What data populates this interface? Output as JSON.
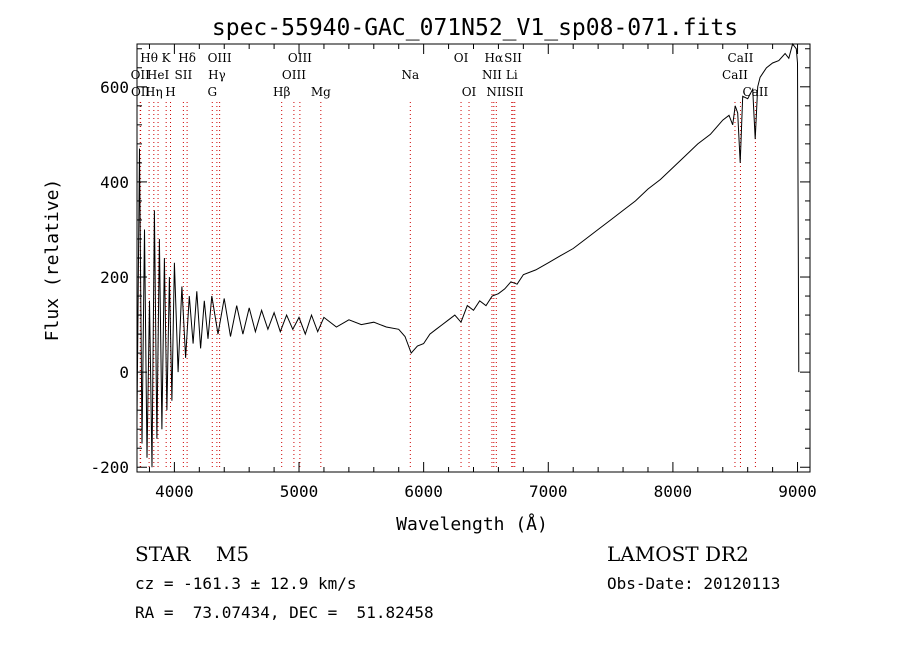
{
  "chart_data": {
    "type": "line",
    "title": "spec-55940-GAC_071N52_V1_sp08-071.fits",
    "xlabel": "Wavelength (Å)",
    "ylabel": "Flux (relative)",
    "xlim": [
      3700,
      9100
    ],
    "ylim": [
      -210,
      690
    ],
    "x_ticks": [
      4000,
      5000,
      6000,
      7000,
      8000,
      9000
    ],
    "y_ticks": [
      -200,
      0,
      200,
      400,
      600
    ],
    "grid": false,
    "legend": "none",
    "line_color": "#000000",
    "marker_color": "#cc0000",
    "series": [
      {
        "x": [
          3700,
          3720,
          3740,
          3760,
          3780,
          3800,
          3820,
          3840,
          3860,
          3880,
          3900,
          3920,
          3940,
          3960,
          3980,
          4000,
          4030,
          4060,
          4090,
          4120,
          4150,
          4180,
          4210,
          4240,
          4270,
          4300,
          4350,
          4400,
          4450,
          4500,
          4550,
          4600,
          4650,
          4700,
          4750,
          4800,
          4850,
          4900,
          4950,
          5000,
          5050,
          5100,
          5150,
          5200,
          5300,
          5400,
          5500,
          5600,
          5700,
          5800,
          5850,
          5900,
          5950,
          6000,
          6050,
          6100,
          6150,
          6200,
          6250,
          6300,
          6350,
          6400,
          6450,
          6500,
          6550,
          6600,
          6650,
          6700,
          6750,
          6800,
          6900,
          7000,
          7100,
          7200,
          7300,
          7400,
          7500,
          7600,
          7700,
          7800,
          7900,
          8000,
          8100,
          8200,
          8300,
          8400,
          8450,
          8480,
          8500,
          8520,
          8540,
          8560,
          8600,
          8640,
          8660,
          8680,
          8700,
          8750,
          8800,
          8850,
          8900,
          8930,
          8960,
          8990,
          9000,
          9010
        ],
        "y": [
          -100,
          470,
          -150,
          300,
          -180,
          150,
          -200,
          340,
          -140,
          280,
          -120,
          240,
          -80,
          200,
          -60,
          230,
          0,
          180,
          30,
          160,
          60,
          170,
          50,
          150,
          70,
          160,
          80,
          155,
          75,
          140,
          80,
          135,
          85,
          130,
          90,
          125,
          85,
          120,
          90,
          115,
          80,
          120,
          85,
          115,
          95,
          110,
          100,
          105,
          95,
          90,
          75,
          40,
          55,
          60,
          80,
          90,
          100,
          110,
          120,
          105,
          140,
          130,
          150,
          140,
          160,
          165,
          175,
          190,
          185,
          205,
          215,
          230,
          245,
          260,
          280,
          300,
          320,
          340,
          360,
          385,
          405,
          430,
          455,
          480,
          500,
          530,
          540,
          520,
          560,
          545,
          440,
          580,
          575,
          595,
          490,
          600,
          620,
          640,
          650,
          655,
          670,
          660,
          690,
          680,
          650,
          0
        ]
      }
    ],
    "lines": [
      {
        "x": 3797,
        "label": "Hθ",
        "row": 0
      },
      {
        "x": 3835,
        "label": "Hη",
        "row": 2
      },
      {
        "x": 3869,
        "label": "HeI",
        "row": 1
      },
      {
        "x": 3726,
        "label": "OII",
        "row": 1
      },
      {
        "x": 3729,
        "label": "OII",
        "row": 2
      },
      {
        "x": 3934,
        "label": "K",
        "row": 0
      },
      {
        "x": 3969,
        "label": "H",
        "row": 2
      },
      {
        "x": 4072,
        "label": "SII",
        "row": 1
      },
      {
        "x": 4102,
        "label": "Hδ",
        "row": 0
      },
      {
        "x": 4304,
        "label": "G",
        "row": 2
      },
      {
        "x": 4341,
        "label": "Hγ",
        "row": 1
      },
      {
        "x": 4363,
        "label": "OIII",
        "row": 0
      },
      {
        "x": 4861,
        "label": "Hβ",
        "row": 2
      },
      {
        "x": 4959,
        "label": "OIII",
        "row": 1
      },
      {
        "x": 5007,
        "label": "OIII",
        "row": 0
      },
      {
        "x": 5175,
        "label": "Mg",
        "row": 2
      },
      {
        "x": 5893,
        "label": "Na",
        "row": 1
      },
      {
        "x": 6300,
        "label": "OI",
        "row": 0
      },
      {
        "x": 6364,
        "label": "OI",
        "row": 2
      },
      {
        "x": 6548,
        "label": "NII",
        "row": 1
      },
      {
        "x": 6563,
        "label": "Hα",
        "row": 0
      },
      {
        "x": 6583,
        "label": "NII",
        "row": 2
      },
      {
        "x": 6707,
        "label": "Li",
        "row": 1
      },
      {
        "x": 6717,
        "label": "SII",
        "row": 0
      },
      {
        "x": 6731,
        "label": "SII",
        "row": 2
      },
      {
        "x": 8498,
        "label": "CaII",
        "row": 1
      },
      {
        "x": 8542,
        "label": "CaII",
        "row": 0
      },
      {
        "x": 8662,
        "label": "CaII",
        "row": 2
      }
    ]
  },
  "info": {
    "object": "STAR    M5",
    "survey": "LAMOST DR2",
    "cz": "cz = -161.3 ± 12.9 km/s",
    "obs_date": "Obs-Date: 20120113",
    "coords": "RA =  73.07434, DEC =  51.82458"
  }
}
